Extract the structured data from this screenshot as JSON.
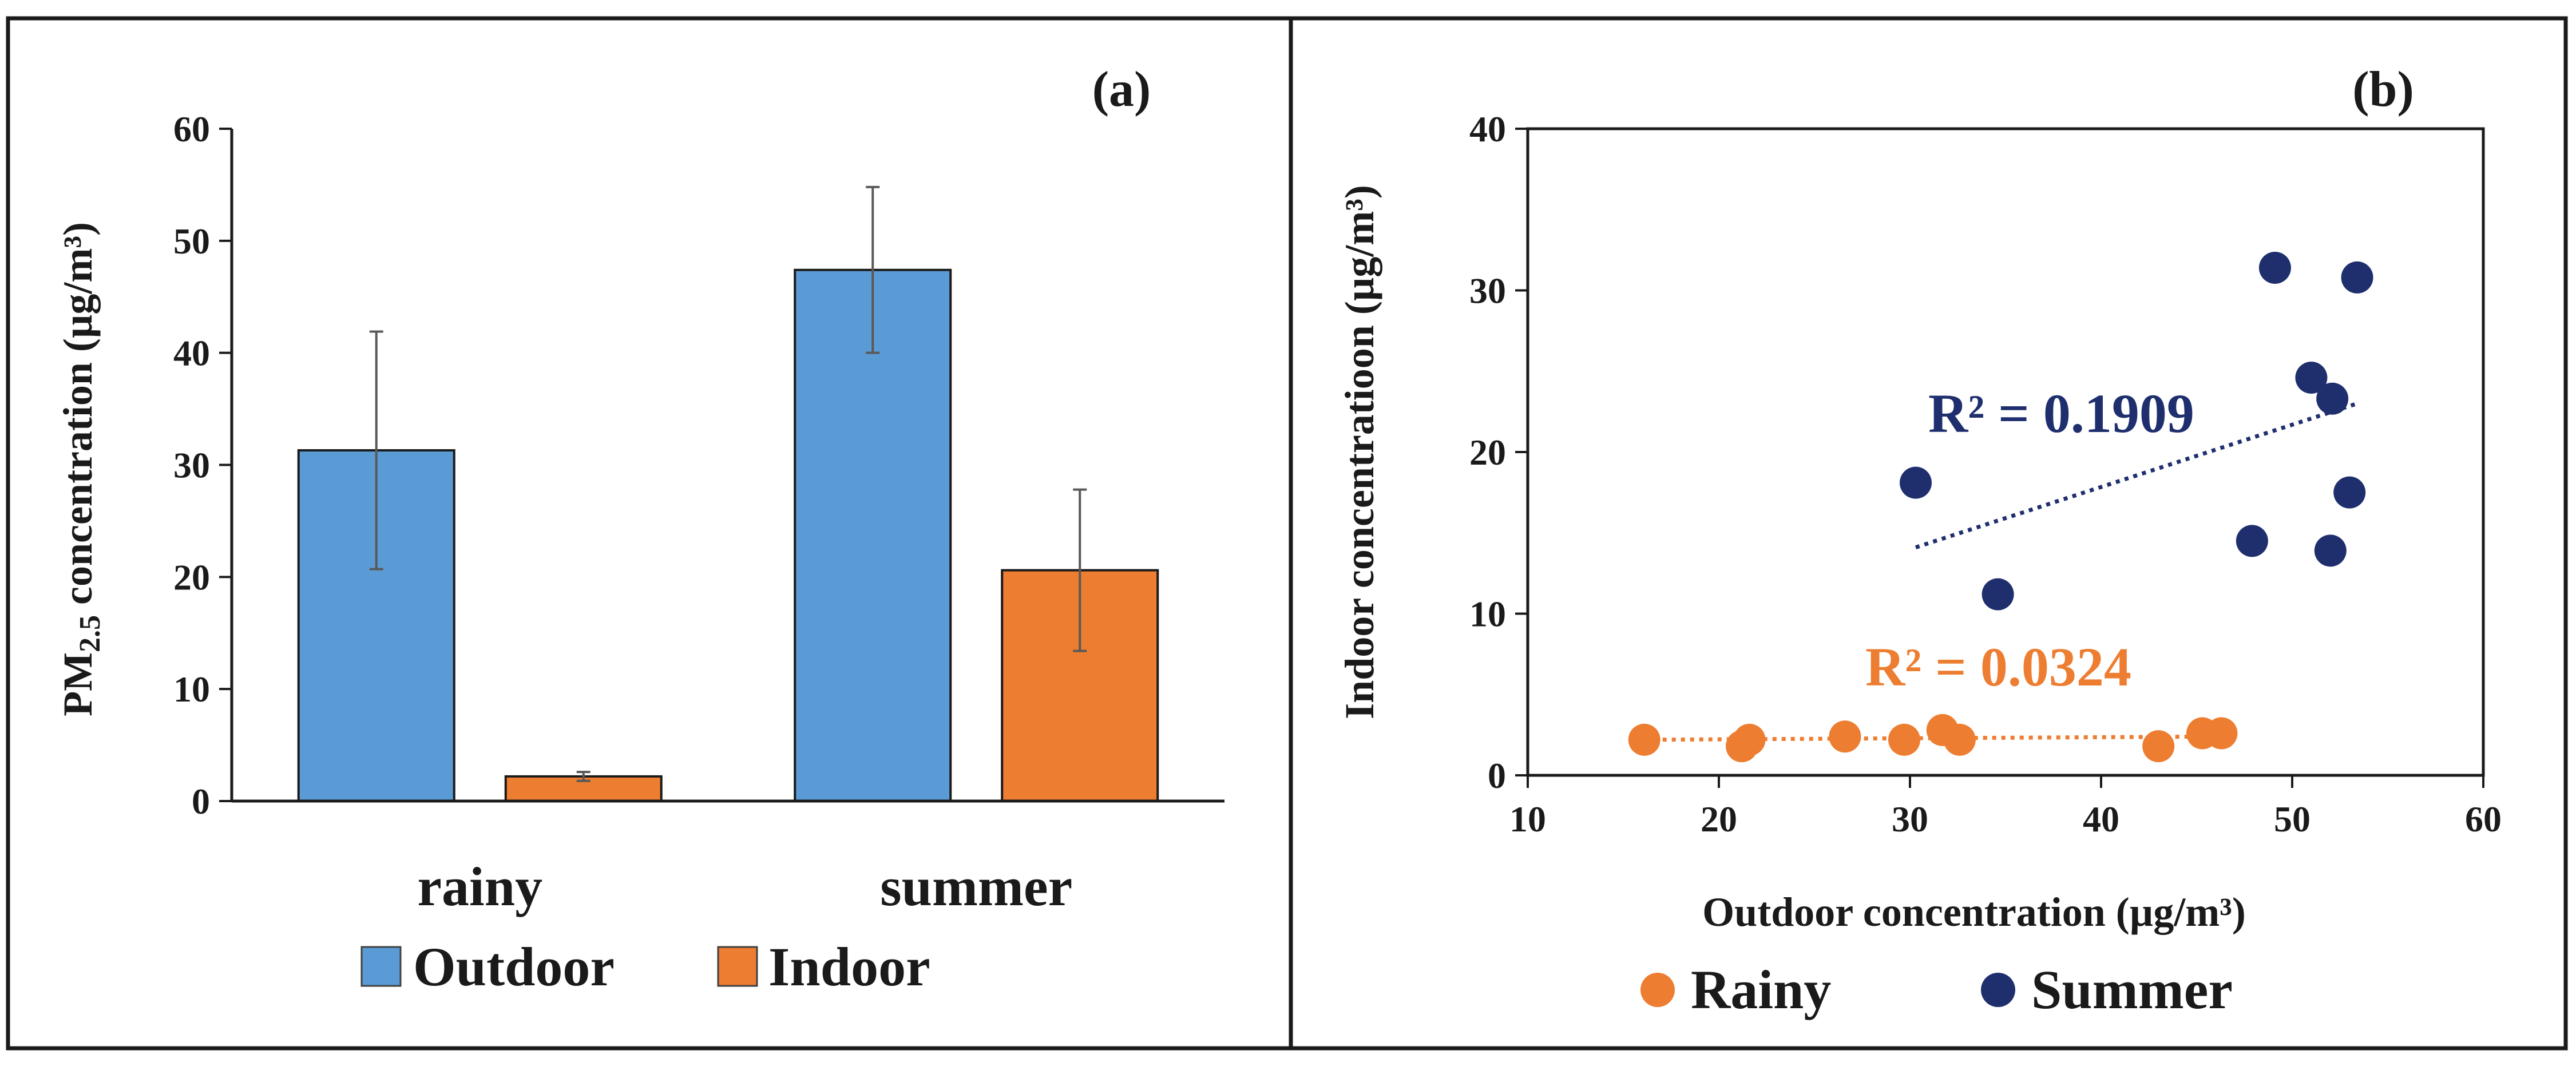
{
  "chart_data": [
    {
      "type": "bar",
      "panel_label": "(a)",
      "ylabel_main": "PM",
      "ylabel_sub": "2.5",
      "ylabel_rest": " concentration  (µg/m³)",
      "ylim": [
        0,
        60
      ],
      "yticks": [
        "0",
        "10",
        "20",
        "30",
        "40",
        "50",
        "60"
      ],
      "categories": [
        "rainy",
        "summer"
      ],
      "series": [
        {
          "name": "Outdoor",
          "color": "#5B9BD5",
          "values": [
            31.3,
            47.4
          ],
          "errors": [
            10.6,
            7.4
          ]
        },
        {
          "name": "Indoor",
          "color": "#ED7D31",
          "values": [
            2.2,
            20.6
          ],
          "errors": [
            0.4,
            7.2
          ]
        }
      ],
      "legend": [
        "Outdoor",
        "Indoor"
      ],
      "grid": false
    },
    {
      "type": "scatter",
      "panel_label": "(b)",
      "xlabel": "Outdoor concentration  (µg/m³)",
      "ylabel": "Indoor concentratioon  (µg/m³)",
      "xlim": [
        10,
        60
      ],
      "ylim": [
        0,
        40
      ],
      "xticks": [
        "10",
        "20",
        "30",
        "40",
        "50",
        "60"
      ],
      "yticks": [
        "0",
        "10",
        "20",
        "30",
        "40"
      ],
      "series": [
        {
          "name": "Rainy",
          "color": "#ED7D31",
          "points": [
            [
              16.1,
              2.2
            ],
            [
              21.2,
              1.8
            ],
            [
              21.6,
              2.2
            ],
            [
              26.6,
              2.4
            ],
            [
              29.7,
              2.2
            ],
            [
              31.7,
              2.8
            ],
            [
              32.6,
              2.2
            ],
            [
              43.0,
              1.8
            ],
            [
              45.3,
              2.6
            ],
            [
              46.3,
              2.6
            ]
          ],
          "trendline": {
            "x": [
              16.1,
              46.3
            ],
            "y": [
              2.2,
              2.4
            ]
          },
          "r2_label": "R² = 0.0324"
        },
        {
          "name": "Summer",
          "color": "#1F2F6E",
          "points": [
            [
              30.3,
              18.1
            ],
            [
              34.6,
              11.2
            ],
            [
              47.9,
              14.5
            ],
            [
              49.1,
              31.4
            ],
            [
              51.0,
              24.6
            ],
            [
              52.0,
              13.9
            ],
            [
              52.1,
              23.3
            ],
            [
              53.0,
              17.5
            ],
            [
              53.4,
              30.8
            ]
          ],
          "trendline": {
            "x": [
              30.3,
              53.4
            ],
            "y": [
              14.1,
              23.0
            ]
          },
          "r2_label": "R² = 0.1909"
        }
      ],
      "legend": [
        "Rainy",
        "Summer"
      ],
      "grid": false
    }
  ]
}
